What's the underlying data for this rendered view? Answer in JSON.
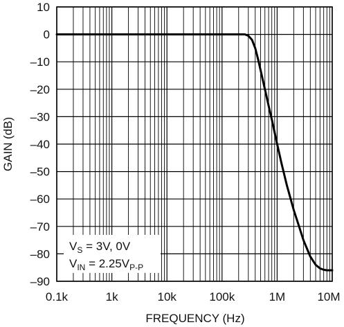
{
  "chart_data": {
    "type": "line",
    "title": "",
    "xlabel": "FREQUENCY (Hz)",
    "ylabel": "GAIN (dB)",
    "xscale": "log",
    "xlim": [
      100,
      10000000
    ],
    "ylim": [
      -90,
      10
    ],
    "grid": true,
    "x_tick_labels": [
      "0.1k",
      "1k",
      "10k",
      "100k",
      "1M",
      "10M"
    ],
    "x_tick_values": [
      100,
      1000,
      10000,
      100000,
      1000000,
      10000000
    ],
    "y_tick_labels": [
      "10",
      "0",
      "–10",
      "–20",
      "–30",
      "–40",
      "–50",
      "–60",
      "–70",
      "–80",
      "–90"
    ],
    "y_tick_values": [
      10,
      0,
      -10,
      -20,
      -30,
      -40,
      -50,
      -60,
      -70,
      -80,
      -90
    ],
    "series": [
      {
        "color": "#000000",
        "x": [
          100,
          1000,
          10000,
          100000,
          200000,
          260000,
          300000,
          350000,
          400000,
          450000,
          500000,
          600000,
          700000,
          800000,
          1000000,
          1200000,
          1500000,
          2000000,
          2500000,
          3000000,
          4000000,
          5000000,
          6000000,
          7000000,
          8000000,
          10000000
        ],
        "y": [
          0,
          0,
          0,
          0,
          0,
          0,
          -0.5,
          -2,
          -5,
          -9,
          -13,
          -20,
          -26,
          -31,
          -40,
          -47,
          -55,
          -64,
          -70,
          -75,
          -81,
          -84,
          -85.3,
          -85.8,
          -86,
          -86
        ]
      }
    ],
    "annotations": [
      {
        "line1_main": "V",
        "line1_sub": "S",
        "line1_rest": " = 3V, 0V"
      },
      {
        "line2_main": "V",
        "line2_sub": "IN",
        "line2_rest": " = 2.25V",
        "line2_sub2": "P-P"
      }
    ]
  }
}
